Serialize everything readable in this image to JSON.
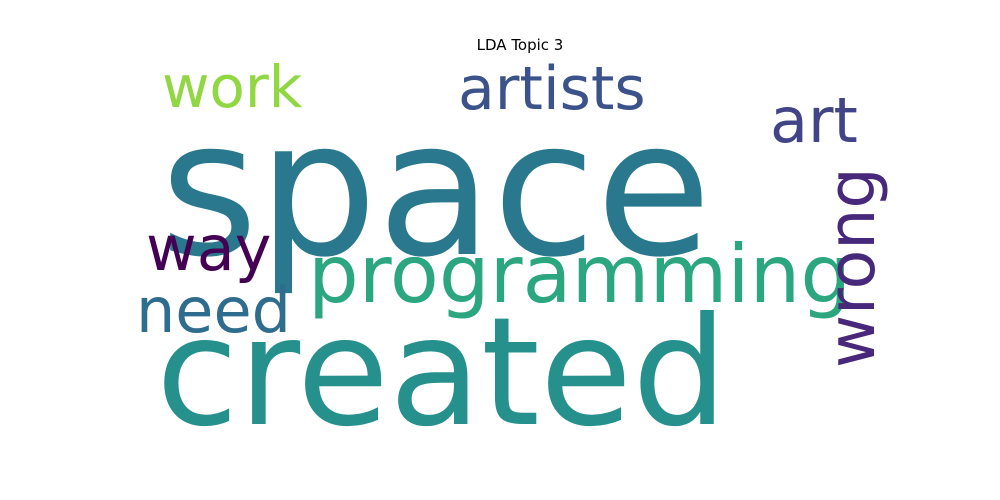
{
  "title": "LDA Topic 3",
  "chart_data": {
    "type": "wordcloud",
    "title": "LDA Topic 3",
    "words": [
      {
        "text": "space",
        "color": "#2a788e"
      },
      {
        "text": "created",
        "color": "#25908c"
      },
      {
        "text": "programming",
        "color": "#2ba67f"
      },
      {
        "text": "artists",
        "color": "#3b528b"
      },
      {
        "text": "art",
        "color": "#414487"
      },
      {
        "text": "wrong",
        "color": "#48287a"
      },
      {
        "text": "work",
        "color": "#90d743"
      },
      {
        "text": "way",
        "color": "#440154"
      },
      {
        "text": "need",
        "color": "#2f6d8e"
      }
    ]
  }
}
